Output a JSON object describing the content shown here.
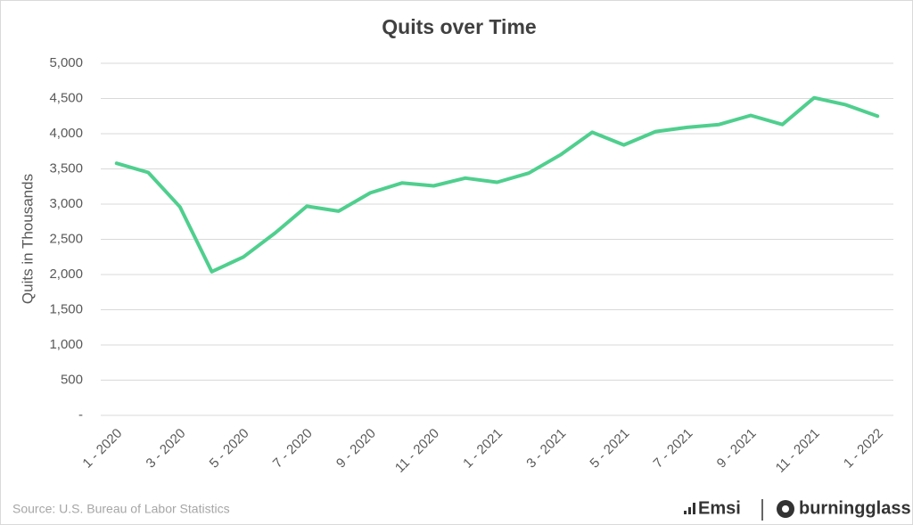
{
  "chart_data": {
    "type": "line",
    "title": "Quits over Time",
    "y_label": "Quits in Thousands",
    "categories": [
      "1 - 2020",
      null,
      "3 - 2020",
      null,
      "5 - 2020",
      null,
      "7 - 2020",
      null,
      "9 - 2020",
      null,
      "11 - 2020",
      null,
      "1 - 2021",
      null,
      "3 - 2021",
      null,
      "5 - 2021",
      null,
      "7 - 2021",
      null,
      "9 - 2021",
      null,
      "11 - 2021",
      null,
      "1 - 2022"
    ],
    "values": [
      3580,
      3450,
      2960,
      2040,
      2250,
      2590,
      2970,
      2900,
      3160,
      3300,
      3260,
      3370,
      3310,
      3440,
      3700,
      4020,
      3840,
      4030,
      4090,
      4130,
      4260,
      4130,
      4510,
      4410,
      4250
    ],
    "color": "#4fcf8e",
    "ylim": [
      0,
      5000
    ],
    "yticks": [
      {
        "value": 0,
        "label": "-"
      },
      500,
      {
        "value": 1000,
        "label": "1,000"
      },
      {
        "value": 1500,
        "label": "1,500"
      },
      {
        "value": 2000,
        "label": "2,000"
      },
      {
        "value": 2500,
        "label": "2,500"
      },
      {
        "value": 3000,
        "label": "3,000"
      },
      {
        "value": 3500,
        "label": "3,500"
      },
      {
        "value": 4000,
        "label": "4,000"
      },
      {
        "value": 4500,
        "label": "4,500"
      },
      {
        "value": 5000,
        "label": "5,000"
      }
    ],
    "grid": true,
    "source": "Source:  U.S. Bureau of Labor Statistics",
    "brands": [
      "Emsi",
      "burningglass"
    ]
  }
}
